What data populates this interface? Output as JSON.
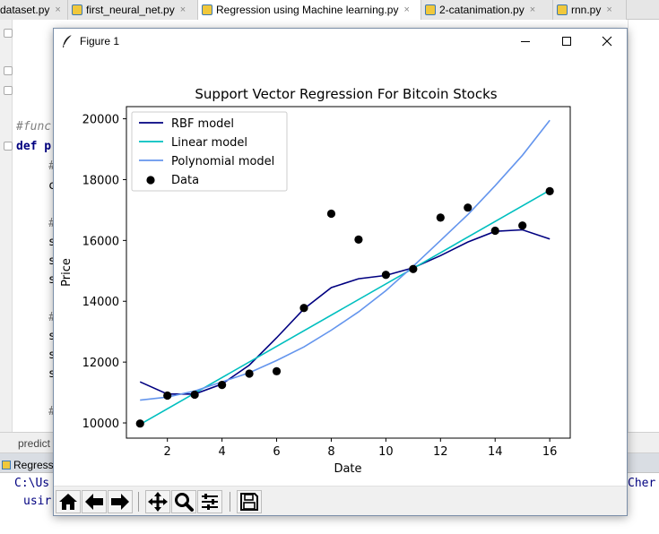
{
  "ide": {
    "tabs": [
      {
        "label": "dataset.py",
        "close": "×"
      },
      {
        "label": "first_neural_net.py",
        "close": "×"
      },
      {
        "label": "Regression using Machine learning.py",
        "close": "×"
      },
      {
        "label": "2-catanimation.py",
        "close": "×"
      },
      {
        "label": "rnn.py",
        "close": "×"
      }
    ],
    "code_lines": [
      "#func",
      "def p",
      "#",
      "c",
      "#",
      "s",
      "s",
      "s",
      "#",
      "s",
      "s",
      "s",
      "#"
    ],
    "breadcrumb": "predict",
    "run_tab_label": "Regressio",
    "console_lines": [
      "C:\\Us",
      "usir",
      "Cher"
    ]
  },
  "figure": {
    "window_title": "Figure 1",
    "window_buttons": {
      "minimize": "—",
      "maximize": "☐",
      "close": "✕"
    },
    "toolbar_icons": [
      "home-icon",
      "back-arrow-icon",
      "forward-arrow-icon",
      "pan-icon",
      "zoom-icon",
      "subplots-icon",
      "save-icon"
    ]
  },
  "chart_data": {
    "type": "line",
    "title": "Support Vector Regression For Bitcoin Stocks",
    "xlabel": "Date",
    "ylabel": "Price",
    "xlim": [
      0.5,
      16.75
    ],
    "ylim": [
      9500,
      20400
    ],
    "xticks": [
      2,
      4,
      6,
      8,
      10,
      12,
      14,
      16
    ],
    "yticks": [
      10000,
      12000,
      14000,
      16000,
      18000,
      20000
    ],
    "legend_position": "top-left",
    "series": [
      {
        "name": "RBF model",
        "kind": "line",
        "color": "#000080",
        "x": [
          1,
          2,
          3,
          4,
          5,
          6,
          7,
          8,
          9,
          10,
          11,
          12,
          13,
          14,
          15,
          16
        ],
        "y": [
          11350,
          10950,
          10950,
          11280,
          11900,
          12800,
          13750,
          14450,
          14740,
          14850,
          15100,
          15500,
          15950,
          16300,
          16350,
          16050
        ]
      },
      {
        "name": "Linear model",
        "kind": "line",
        "color": "#00bfbf",
        "x": [
          1,
          16
        ],
        "y": [
          9950,
          17650
        ]
      },
      {
        "name": "Polynomial model",
        "kind": "line",
        "color": "#6495ed",
        "x": [
          1,
          2,
          3,
          4,
          5,
          6,
          7,
          8,
          9,
          10,
          11,
          12,
          13,
          14,
          15,
          16
        ],
        "y": [
          10750,
          10850,
          11050,
          11350,
          11650,
          12050,
          12500,
          13050,
          13650,
          14350,
          15150,
          16000,
          16850,
          17800,
          18800,
          19950
        ]
      },
      {
        "name": "Data",
        "kind": "scatter",
        "color": "#000000",
        "x": [
          1,
          2,
          3,
          4,
          5,
          6,
          7,
          8,
          9,
          10,
          11,
          12,
          13,
          14,
          15,
          16
        ],
        "y": [
          9980,
          10900,
          10930,
          11250,
          11620,
          11700,
          13780,
          16880,
          16030,
          14870,
          15060,
          16750,
          17080,
          16320,
          16490,
          17620
        ]
      }
    ]
  }
}
